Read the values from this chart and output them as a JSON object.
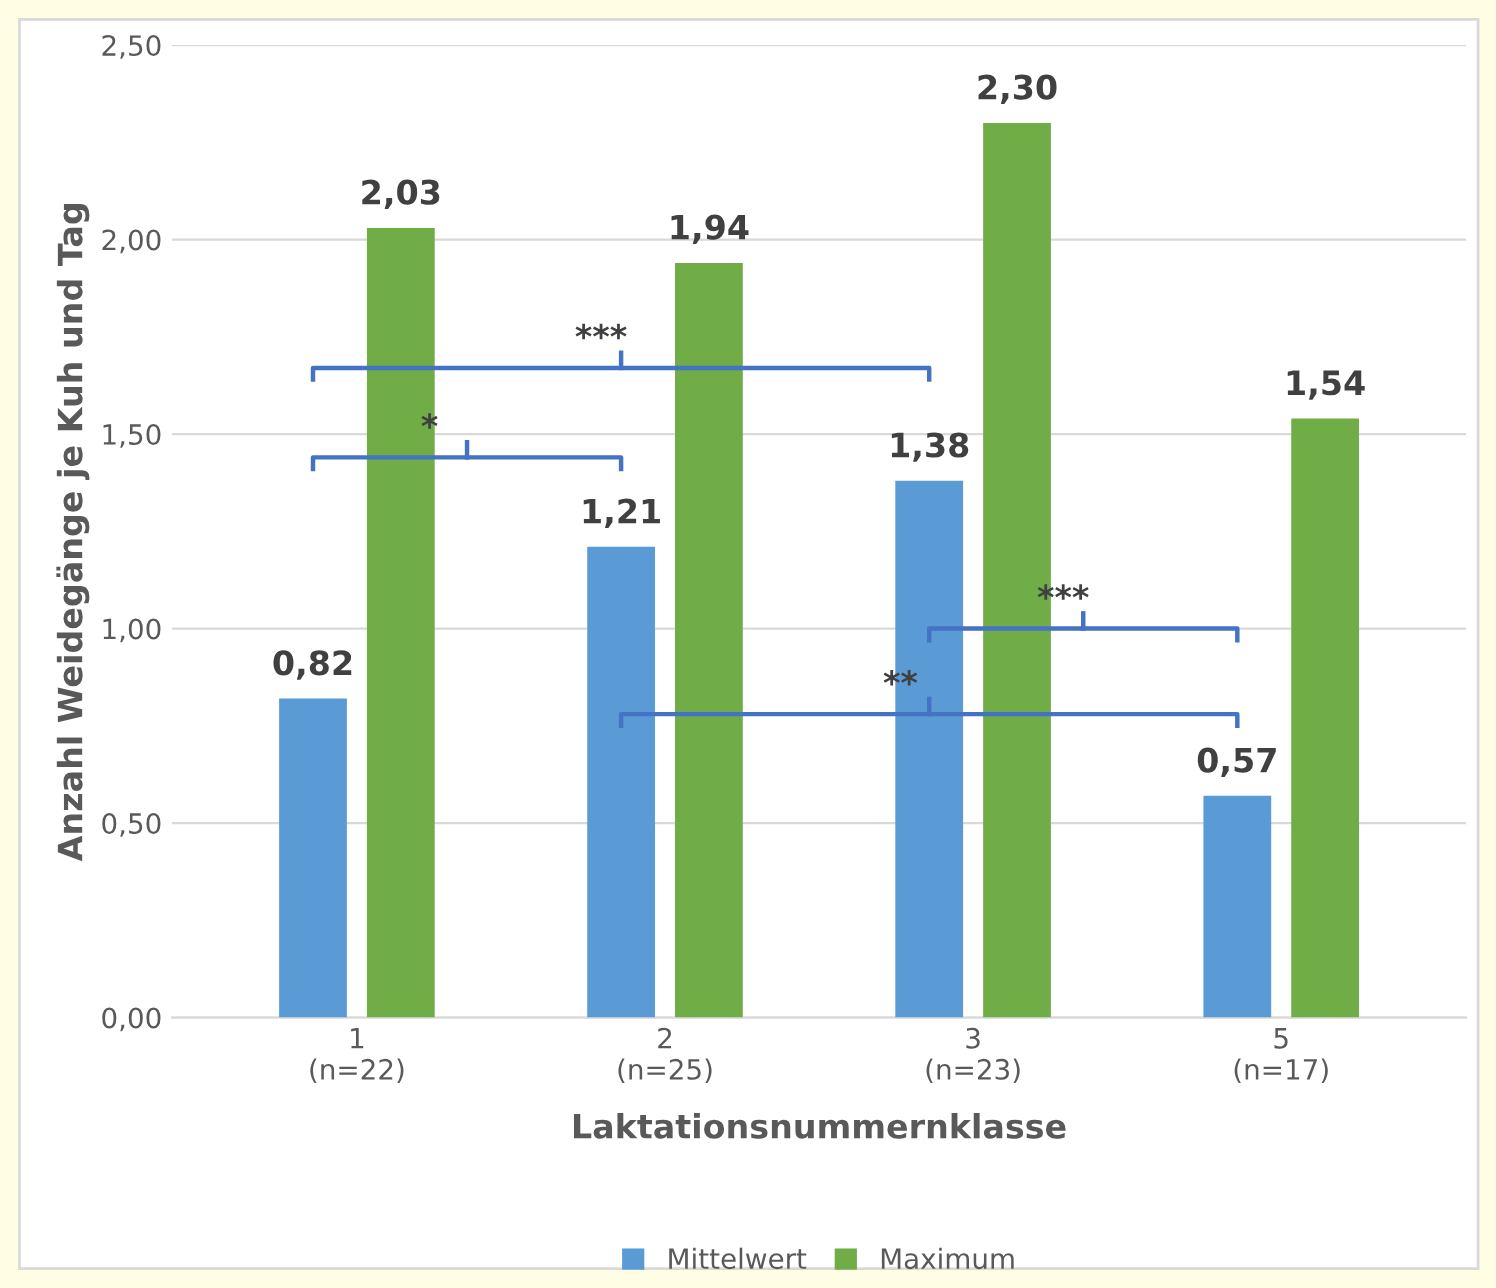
{
  "chart_data": {
    "type": "bar",
    "categories": [
      "1\n(n=22)",
      "2\n(n=25)",
      "3\n(n=23)",
      "5\n(n=17)"
    ],
    "series": [
      {
        "name": "Mittelwert",
        "color": "#5b9bd5",
        "values": [
          0.82,
          1.21,
          1.38,
          0.57
        ],
        "value_labels": [
          "0,82",
          "1,21",
          "1,38",
          "0,57"
        ]
      },
      {
        "name": "Maximum",
        "color": "#70ad47",
        "values": [
          2.03,
          1.94,
          2.3,
          1.54
        ],
        "value_labels": [
          "2,03",
          "1,94",
          "2,30",
          "1,54"
        ]
      }
    ],
    "ylim": [
      0,
      2.5
    ],
    "yticks": [
      {
        "value": 0,
        "label": "0,00"
      },
      {
        "value": 0.5,
        "label": "0,50"
      },
      {
        "value": 1,
        "label": "1,00"
      },
      {
        "value": 1.5,
        "label": "1,50"
      },
      {
        "value": 2,
        "label": "2,00"
      },
      {
        "value": 2.5,
        "label": "2,50"
      }
    ],
    "ylabel": "Anzahl Weidegänge je Kuh und Tag",
    "xlabel": "Laktationsnummernklasse",
    "annotations": [
      "***",
      "*",
      "***",
      "**"
    ],
    "grid": "y",
    "legend": "bottom"
  }
}
